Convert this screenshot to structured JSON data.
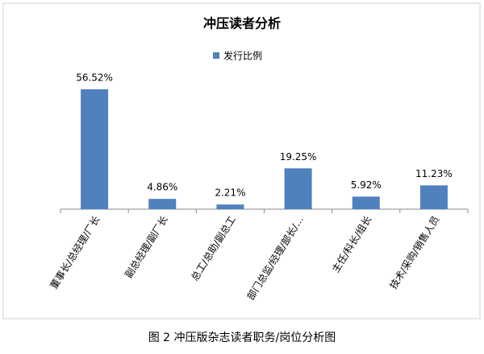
{
  "chart_data": {
    "type": "bar",
    "title": "冲压读者分析",
    "caption": "图 2 冲压版杂志读者职务/岗位分析图",
    "categories": [
      "董事长/总经理/厂长",
      "副总经理/副厂长",
      "总工/总助/副总工",
      "部门总监/经理/部长/…",
      "主任/科长/组长",
      "技术/采购/销售人员"
    ],
    "series": [
      {
        "name": "发行比例",
        "color": "#4f81bd",
        "values": [
          56.52,
          4.86,
          2.21,
          19.25,
          5.92,
          11.23
        ],
        "value_labels": [
          "56.52%",
          "4.86%",
          "2.21%",
          "19.25%",
          "5.92%",
          "11.23%"
        ]
      }
    ],
    "legend": "top"
  }
}
